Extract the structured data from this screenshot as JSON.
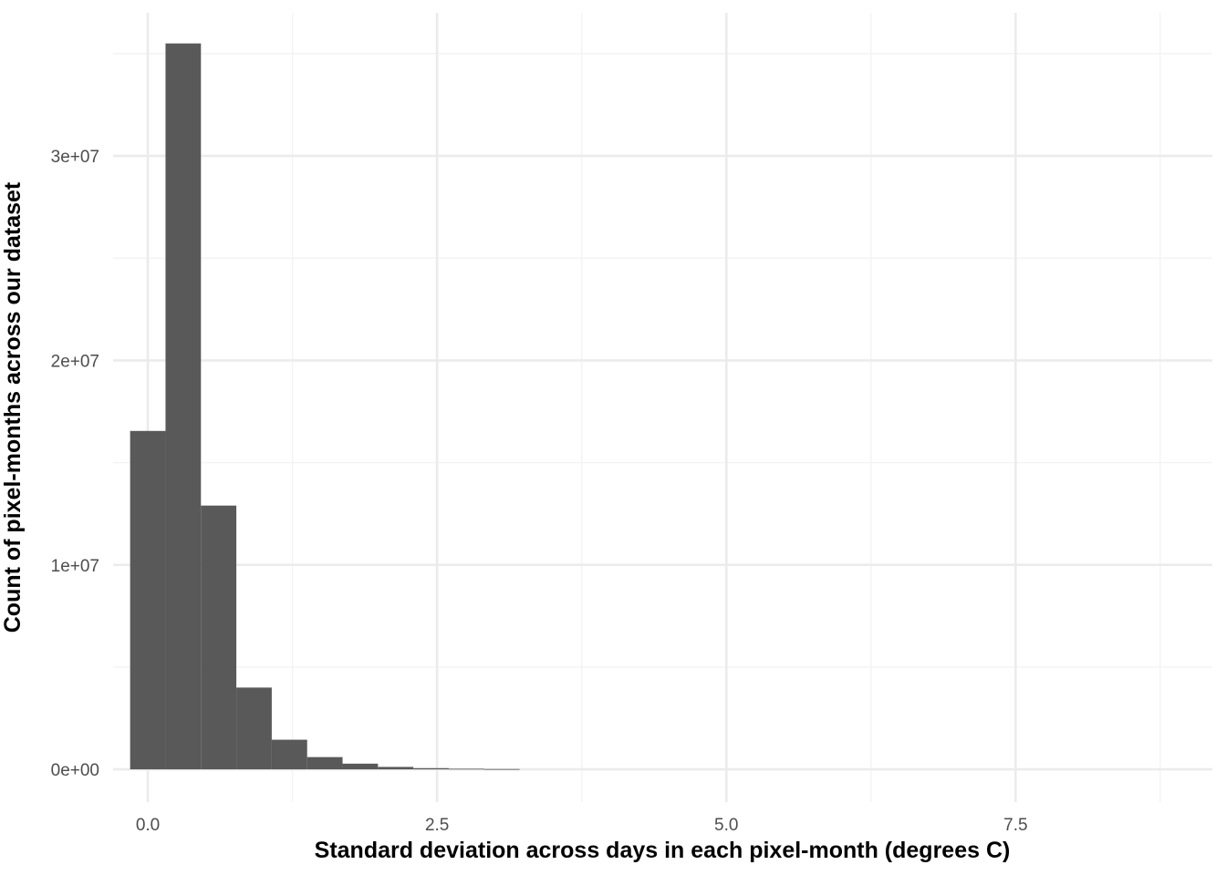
{
  "chart_data": {
    "type": "bar",
    "title": "",
    "xlabel": "Standard deviation across days in each pixel-month (degrees C)",
    "ylabel": "Count of pixel-months across our dataset",
    "bin_width": 0.306,
    "bins": [
      {
        "x": 0.0,
        "count": 16550000
      },
      {
        "x": 0.306,
        "count": 35500000
      },
      {
        "x": 0.612,
        "count": 12900000
      },
      {
        "x": 0.918,
        "count": 4000000
      },
      {
        "x": 1.224,
        "count": 1450000
      },
      {
        "x": 1.53,
        "count": 600000
      },
      {
        "x": 1.836,
        "count": 280000
      },
      {
        "x": 2.142,
        "count": 120000
      },
      {
        "x": 2.448,
        "count": 60000
      },
      {
        "x": 2.754,
        "count": 30000
      },
      {
        "x": 3.06,
        "count": 15000
      }
    ],
    "xlim": [
      -0.3,
      9.2
    ],
    "ylim": [
      -1600000,
      37000000
    ],
    "x_ticks": [
      {
        "value": 0,
        "label": "0.0"
      },
      {
        "value": 2.5,
        "label": "2.5"
      },
      {
        "value": 5,
        "label": "5.0"
      },
      {
        "value": 7.5,
        "label": "7.5"
      }
    ],
    "x_minor_ticks": [
      1.25,
      3.75,
      6.25,
      8.75
    ],
    "y_ticks": [
      {
        "value": 0,
        "label": "0e+00"
      },
      {
        "value": 10000000,
        "label": "1e+07"
      },
      {
        "value": 20000000,
        "label": "2e+07"
      },
      {
        "value": 30000000,
        "label": "3e+07"
      }
    ],
    "y_minor_ticks": [
      5000000,
      15000000,
      25000000,
      35000000
    ],
    "grid": true,
    "legend": "none",
    "colors": {
      "bar": "#595959",
      "grid_major": "#ebebeb",
      "grid_minor": "#f3f3f3",
      "tick_text": "#4d4d4d",
      "title_text": "#000000"
    }
  }
}
